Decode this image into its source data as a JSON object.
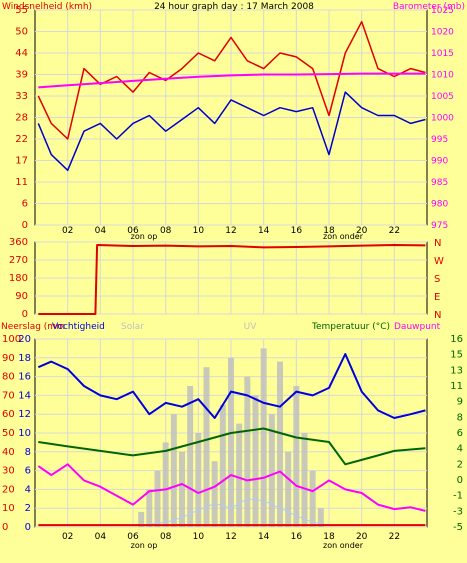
{
  "chart_data": [
    {
      "type": "line",
      "title": "24 hour graph day : 17 March 2008",
      "left_axis_label": "Windsnelheid (kmh)",
      "right_axis_label": "Barometer (mb)",
      "x_ticks": [
        "02",
        "04",
        "06",
        "08",
        "10",
        "12",
        "14",
        "16",
        "18",
        "20",
        "22"
      ],
      "x_annotations": [
        "zon op",
        "zon onder"
      ],
      "y_left_ticks": [
        "0",
        "6",
        "11",
        "17",
        "22",
        "28",
        "33",
        "39",
        "44",
        "50",
        "55"
      ],
      "y_right_ticks": [
        "975",
        "980",
        "985",
        "990",
        "995",
        "1000",
        "1005",
        "1010",
        "1015",
        "1020",
        "1025"
      ],
      "ylim_left": [
        0,
        55
      ],
      "ylim_right": [
        975,
        1025
      ],
      "grid": true,
      "series": [
        {
          "name": "Windsnelheid (kmh)",
          "axis": "left",
          "color": "#e00000",
          "x": [
            0.2,
            1,
            2,
            3,
            4,
            5,
            6,
            7,
            8,
            9,
            10,
            11,
            12,
            13,
            14,
            15,
            16,
            17,
            18,
            19,
            20,
            21,
            22,
            23,
            23.9
          ],
          "y": [
            33,
            26,
            22,
            40,
            36,
            38,
            34,
            39,
            37,
            40,
            44,
            42,
            48,
            42,
            40,
            44,
            43,
            40,
            28,
            44,
            52,
            40,
            38,
            40,
            39
          ]
        },
        {
          "name": "Windstoten",
          "axis": "left",
          "color": "#0000cc",
          "x": [
            0.2,
            1,
            2,
            3,
            4,
            5,
            6,
            7,
            8,
            9,
            10,
            11,
            12,
            13,
            14,
            15,
            16,
            17,
            18,
            19,
            20,
            21,
            22,
            23,
            23.9
          ],
          "y": [
            26,
            18,
            14,
            24,
            26,
            22,
            26,
            28,
            24,
            27,
            30,
            26,
            32,
            30,
            28,
            30,
            29,
            30,
            18,
            34,
            30,
            28,
            28,
            26,
            27
          ]
        },
        {
          "name": "Barometer (mb)",
          "axis": "right",
          "color": "#ff00ff",
          "x": [
            0.2,
            2,
            4,
            6,
            8,
            10,
            12,
            14,
            16,
            18,
            20,
            22,
            23.9
          ],
          "y": [
            1007,
            1007.5,
            1008,
            1008.5,
            1009,
            1009.5,
            1009.8,
            1010,
            1010,
            1010.1,
            1010.2,
            1010.2,
            1010.2
          ]
        }
      ]
    },
    {
      "type": "line",
      "title": "",
      "y_left_ticks": [
        "360",
        "270",
        "180",
        "90",
        "0"
      ],
      "y_right_ticks": [
        "N",
        "W",
        "S",
        "E",
        "N"
      ],
      "ylim": [
        0,
        360
      ],
      "grid": true,
      "series": [
        {
          "name": "Windrichting",
          "color": "#e00000",
          "x": [
            0.2,
            3.7,
            3.8,
            6,
            8,
            10,
            12,
            14,
            16,
            18,
            20,
            22,
            23.9
          ],
          "y": [
            0,
            0,
            345,
            340,
            342,
            338,
            340,
            333,
            335,
            338,
            342,
            345,
            343
          ]
        }
      ]
    },
    {
      "type": "line",
      "left_axis_labels": [
        "Neerslag (mm",
        "Vochtigheid",
        "Solar"
      ],
      "center_label": "UV",
      "right_axis_label": "Temperatuur (°C)",
      "right_axis_label_2": "Dauwpunt",
      "x_ticks": [
        "02",
        "04",
        "06",
        "08",
        "10",
        "12",
        "14",
        "16",
        "18",
        "20",
        "22"
      ],
      "x_annotations": [
        "zon op",
        "zon onder"
      ],
      "y_left_outer_ticks": [
        "0",
        "10",
        "20",
        "30",
        "40",
        "50",
        "60",
        "70",
        "80",
        "90",
        "100"
      ],
      "y_left_inner_ticks": [
        "0",
        "2",
        "4",
        "6",
        "8",
        "10",
        "12",
        "14",
        "16",
        "18",
        "20"
      ],
      "y_right_ticks": [
        "-5",
        "-3",
        "-1",
        "0",
        "2",
        "4",
        "6",
        "8",
        "9",
        "11",
        "13",
        "15",
        "16"
      ],
      "ylim_temperature": [
        -5,
        16
      ],
      "ylim_humidity": [
        0,
        100
      ],
      "grid": true,
      "series": [
        {
          "name": "Vochtigheid",
          "color": "#0000dd",
          "x": [
            0.2,
            1,
            2,
            3,
            4,
            5,
            6,
            7,
            8,
            9,
            10,
            11,
            12,
            13,
            14,
            15,
            16,
            17,
            18,
            19,
            20,
            21,
            22,
            23,
            23.9
          ],
          "y": [
            85,
            88,
            84,
            75,
            70,
            68,
            72,
            60,
            66,
            64,
            68,
            58,
            72,
            70,
            66,
            64,
            72,
            70,
            74,
            92,
            72,
            62,
            58,
            60,
            62
          ]
        },
        {
          "name": "Temperatuur",
          "color": "#006600",
          "x": [
            0.2,
            2,
            4,
            6,
            8,
            10,
            12,
            14,
            16,
            18,
            19,
            20,
            22,
            23.9
          ],
          "y": [
            4.5,
            4.0,
            3.5,
            3.0,
            3.5,
            4.5,
            5.5,
            6.0,
            5.0,
            4.5,
            2.0,
            2.5,
            3.5,
            3.8
          ]
        },
        {
          "name": "Dauwpunt",
          "color": "#ff00ff",
          "x": [
            0.2,
            1,
            2,
            3,
            4,
            5,
            6,
            7,
            8,
            9,
            10,
            11,
            12,
            13,
            14,
            15,
            16,
            17,
            18,
            19,
            20,
            21,
            22,
            23,
            23.9
          ],
          "y": [
            1.8,
            0.8,
            2.0,
            0.2,
            -0.5,
            -1.5,
            -2.5,
            -1.0,
            -0.8,
            -0.2,
            -1.2,
            -0.5,
            0.8,
            0.2,
            0.5,
            1.2,
            -0.4,
            -1.0,
            0.2,
            -0.8,
            -1.2,
            -2.5,
            -3.0,
            -2.8,
            -3.2
          ]
        },
        {
          "name": "Solar",
          "color": "#c0c0c0",
          "type": "bars",
          "x": [
            6.5,
            7,
            7.5,
            8,
            8.5,
            9,
            9.5,
            10,
            10.5,
            11,
            11.5,
            12,
            12.5,
            13,
            13.5,
            14,
            14.5,
            15,
            15.5,
            16,
            16.5,
            17,
            17.5
          ],
          "y": [
            8,
            20,
            30,
            45,
            60,
            40,
            75,
            50,
            85,
            35,
            65,
            90,
            55,
            80,
            70,
            95,
            60,
            88,
            40,
            75,
            50,
            30,
            10
          ]
        },
        {
          "name": "UV",
          "color": "#aaccff",
          "x": [
            6.5,
            8,
            9,
            10,
            11,
            12,
            13,
            14,
            15,
            16,
            17,
            18
          ],
          "y": [
            0.2,
            0.5,
            1.0,
            1.8,
            2.5,
            2.0,
            3.0,
            2.8,
            2.0,
            1.2,
            0.5,
            0.2
          ]
        },
        {
          "name": "Neerslag",
          "color": "#e00000",
          "x": [
            0.2,
            23.9
          ],
          "y": [
            0.2,
            0.2
          ]
        }
      ]
    }
  ]
}
